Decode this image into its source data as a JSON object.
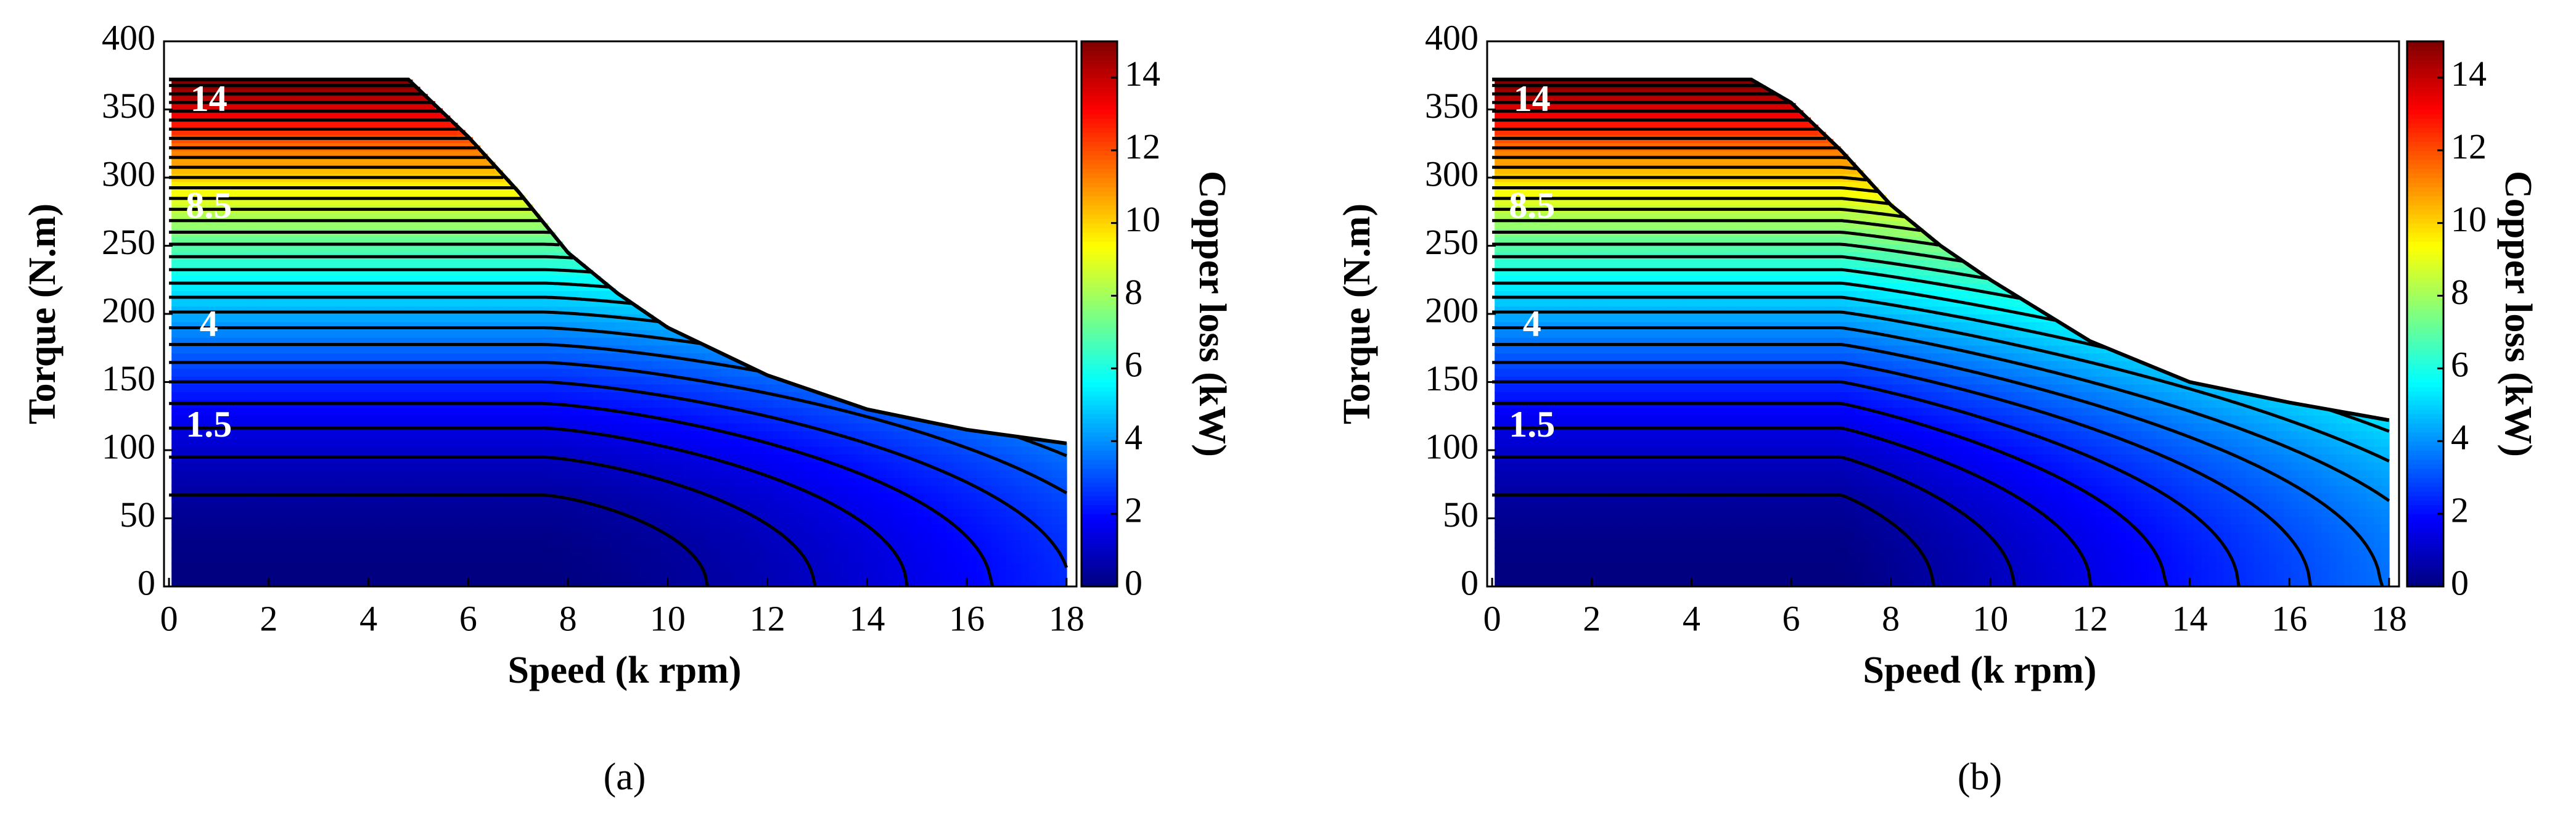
{
  "chart_data": [
    {
      "type": "contour",
      "caption": "(a)",
      "xlabel": "Speed (k rpm)",
      "ylabel": "Torque (N.m)",
      "colorbar_label": "Copper loss (kW)",
      "colormap": "jet",
      "xlim": [
        -0.1,
        18.2
      ],
      "xticks": [
        0,
        2,
        4,
        6,
        8,
        10,
        12,
        14,
        16,
        18
      ],
      "ylim": [
        0,
        400
      ],
      "yticks": [
        0,
        50,
        100,
        150,
        200,
        250,
        300,
        350,
        400
      ],
      "clim": [
        0,
        15
      ],
      "cticks": [
        0,
        2,
        4,
        6,
        8,
        10,
        12,
        14
      ],
      "contour_labels": [
        14,
        8.5,
        4,
        1.5
      ],
      "envelope": {
        "x": [
          0,
          4.8,
          6,
          7,
          8,
          9,
          10,
          12,
          14,
          16,
          18
        ],
        "y": [
          372,
          372,
          330,
          290,
          245,
          215,
          190,
          155,
          130,
          115,
          105
        ]
      }
    },
    {
      "type": "contour",
      "caption": "(b)",
      "xlabel": "Speed (k rpm)",
      "ylabel": "Torque (N.m)",
      "colorbar_label": "Copper loss (kW)",
      "colormap": "jet",
      "xlim": [
        -0.1,
        18.2
      ],
      "xticks": [
        0,
        2,
        4,
        6,
        8,
        10,
        12,
        14,
        16,
        18
      ],
      "ylim": [
        0,
        400
      ],
      "yticks": [
        0,
        50,
        100,
        150,
        200,
        250,
        300,
        350,
        400
      ],
      "clim": [
        0,
        15
      ],
      "cticks": [
        0,
        2,
        4,
        6,
        8,
        10,
        12,
        14
      ],
      "contour_labels": [
        14,
        8.5,
        4,
        1.5
      ],
      "envelope": {
        "x": [
          0,
          5.2,
          6,
          7,
          8,
          9,
          10,
          12,
          14,
          16,
          18
        ],
        "y": [
          372,
          372,
          355,
          320,
          280,
          250,
          225,
          180,
          150,
          135,
          122
        ]
      }
    }
  ]
}
